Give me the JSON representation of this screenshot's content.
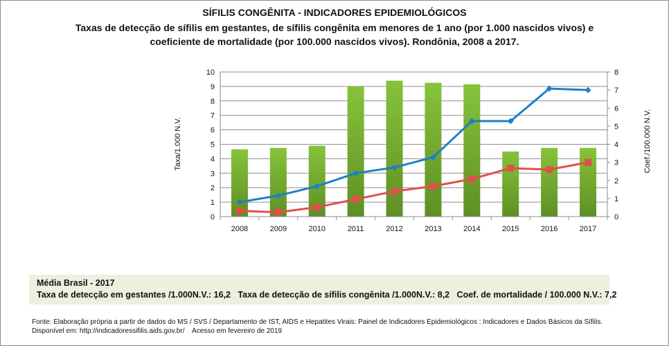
{
  "title": "SÍFILIS CONGÊNITA - INDICADORES EPIDEMIOLÓGICOS",
  "subtitle_line1": "Taxas de detecção de sífilis em gestantes, de sífilis congênita em menores de 1 ano (por 1.000 nascidos vivos) e",
  "subtitle_line2": "coeficiente de mortalidade (por 100.000 nascidos vivos). Rondônia, 2008 a 2017.",
  "chart_data": {
    "type": "bar",
    "categories": [
      "2008",
      "2009",
      "2010",
      "2011",
      "2012",
      "2013",
      "2014",
      "2015",
      "2016",
      "2017"
    ],
    "ylabel": "Taxa/1.000 N.V.",
    "ylabel_right": "Coef./100.000 N.V.",
    "ylim": [
      0,
      10
    ],
    "ylim_right": [
      0,
      8
    ],
    "yticks": [
      "0",
      "1",
      "2",
      "3",
      "4",
      "5",
      "6",
      "7",
      "8",
      "9",
      "10"
    ],
    "yticks_right": [
      "0",
      "1",
      "2",
      "3",
      "4",
      "5",
      "6",
      "7",
      "8"
    ],
    "grid": true,
    "legend": "none",
    "series": [
      {
        "type": "bar",
        "axis": "right",
        "color": "#77b433",
        "values": [
          3.72,
          3.8,
          3.92,
          7.2,
          7.52,
          7.4,
          7.32,
          3.6,
          3.8,
          3.8
        ]
      },
      {
        "type": "line",
        "axis": "left",
        "color": "#1f7fc4",
        "marker": "diamond",
        "values": [
          1.0,
          1.45,
          2.1,
          3.0,
          3.4,
          4.1,
          6.6,
          6.6,
          8.85,
          8.75
        ]
      },
      {
        "type": "line",
        "axis": "left",
        "color": "#e0504b",
        "marker": "square",
        "values": [
          0.4,
          0.3,
          0.65,
          1.2,
          1.75,
          2.1,
          2.6,
          3.35,
          3.25,
          3.75
        ]
      }
    ]
  },
  "brasil": {
    "heading": "Média Brasil - 2017",
    "line": "Taxa de detecção em gestantes /1.000N.V.: 16,2   Taxa de detecção de sífilis congênita /1.000N.V.: 8,2   Coef. de mortalidade / 100.000 N.V.: 7,2"
  },
  "source_line1": "Fonte: Elaboração própria a partir de dados do MS / SVS / Departamento de IST, AIDS e Hepatites Virais: Painel de Indicadores Epidemiológicos : Indicadores e Dados Básicos da Sífilis.",
  "source_line2": "Disponível em: http://indicadoressifilis.aids.gov.br/    Acesso em fevereiro de 2019"
}
